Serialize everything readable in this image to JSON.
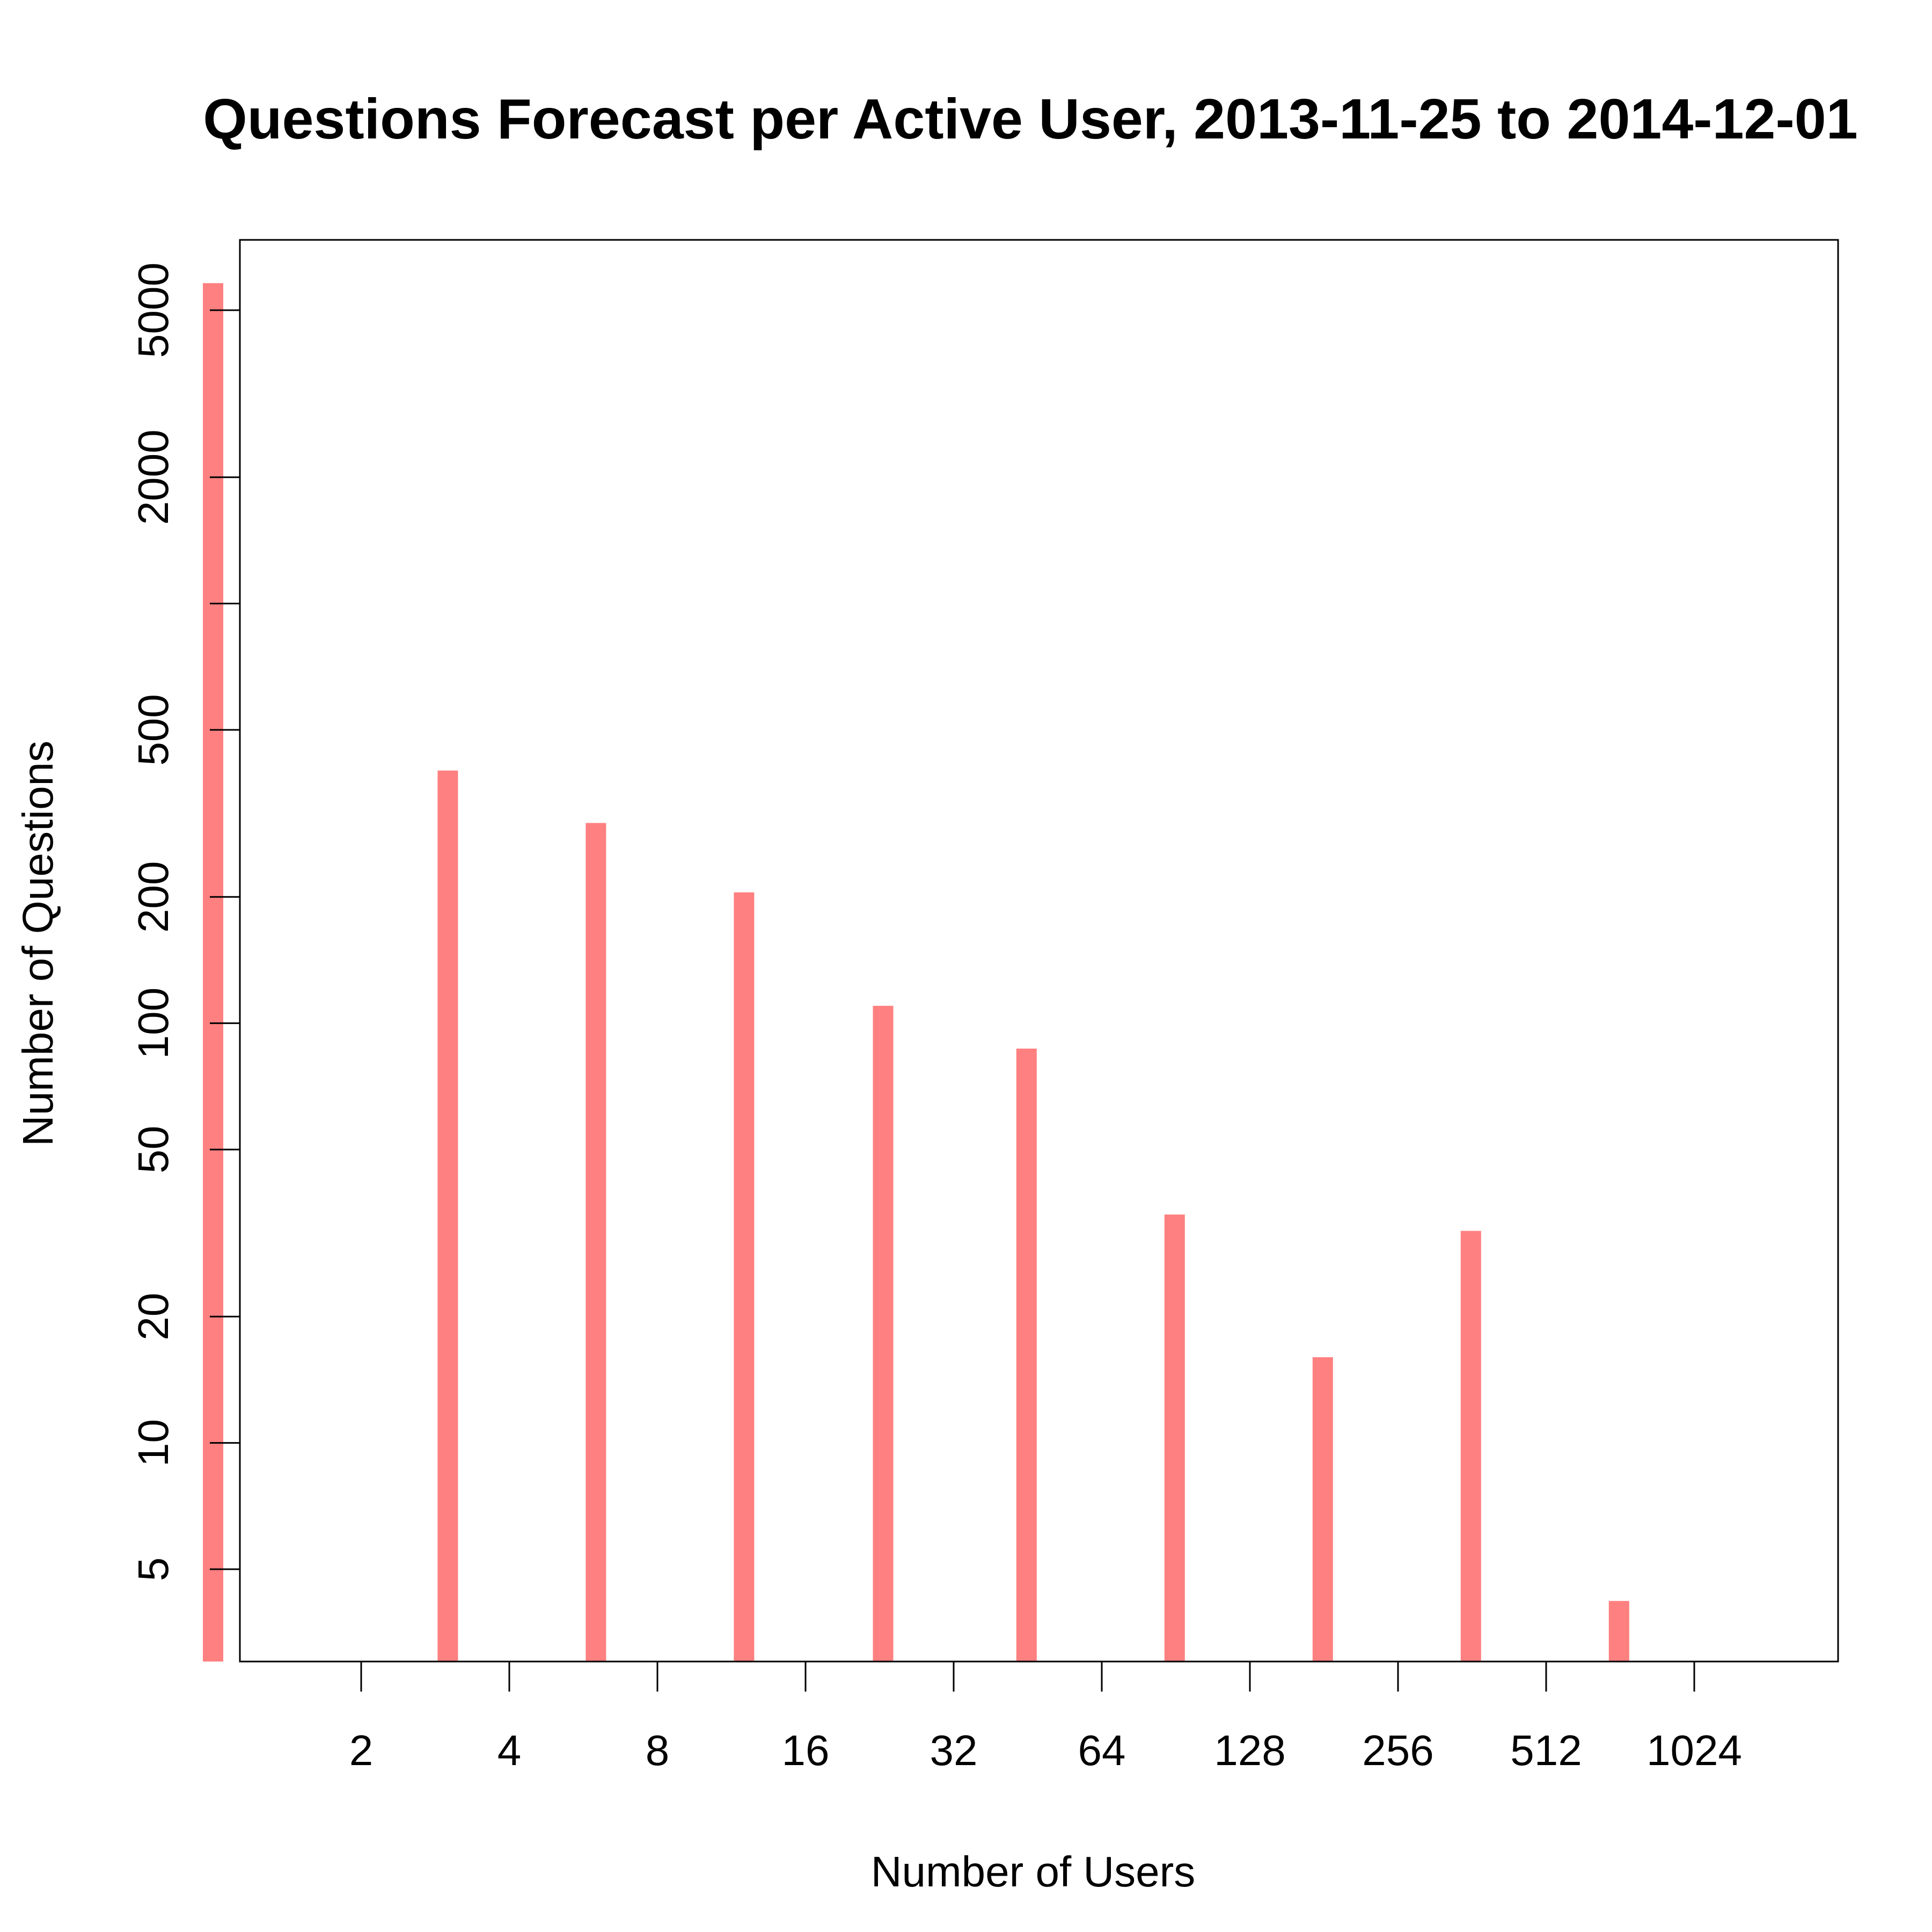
{
  "chart_data": {
    "type": "bar",
    "title": "Questions Forecast per Active User, 2013-11-25 to 2014-12-01",
    "xlabel": "Number of Users",
    "ylabel": "Number of Questions",
    "x_scale": "log2",
    "y_scale": "log10",
    "x_ticks": [
      "2",
      "4",
      "8",
      "16",
      "32",
      "64",
      "128",
      "256",
      "512",
      "1024"
    ],
    "y_ticks": [
      "5",
      "10",
      "20",
      "50",
      "100",
      "200",
      "500",
      "2000",
      "5000"
    ],
    "y_minor_ticks": [
      1000
    ],
    "categories": [
      "1",
      "3",
      "6",
      "12",
      "23",
      "45",
      "90",
      "180",
      "360",
      "720"
    ],
    "values": [
      5800,
      400,
      300,
      205,
      110,
      87,
      35,
      16,
      32,
      4.2
    ],
    "bar_color": "#ff8080",
    "grid": false,
    "legend": "none"
  }
}
